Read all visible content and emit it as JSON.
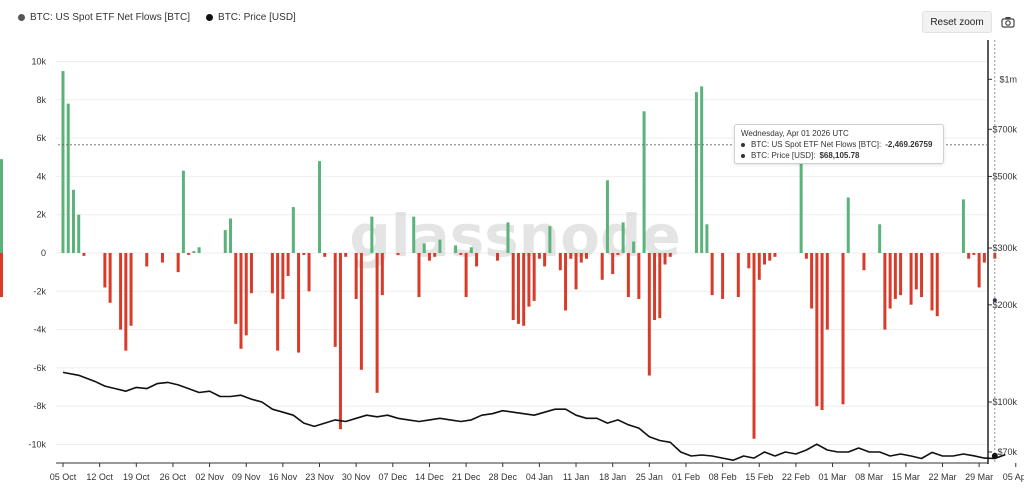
{
  "legend": {
    "items": [
      {
        "label": "BTC: US Spot ETF Net Flows [BTC]",
        "color": "#555555"
      },
      {
        "label": "BTC: Price [USD]",
        "color": "#111111"
      }
    ]
  },
  "toolbar": {
    "reset_zoom_label": "Reset zoom",
    "camera_icon": "camera-icon"
  },
  "watermark": "glassnode",
  "tooltip": {
    "date": "Wednesday, Apr 01 2026 UTC",
    "flow_label": "BTC: US Spot ETF Net Flows [BTC]: ",
    "flow_value": "-2,469.26759",
    "price_label": "BTC: Price [USD]: ",
    "price_value": "$68,105.78"
  },
  "colors": {
    "positive": "#5bb27a",
    "negative": "#d93b2b",
    "price": "#111111",
    "grid": "#eeeeee"
  },
  "chart_data": {
    "type": "bar",
    "xlabel": "",
    "ylabel": "",
    "x_ticks": [
      "05 Oct",
      "12 Oct",
      "19 Oct",
      "26 Oct",
      "02 Nov",
      "09 Nov",
      "16 Nov",
      "23 Nov",
      "30 Nov",
      "07 Dec",
      "14 Dec",
      "21 Dec",
      "28 Dec",
      "04 Jan",
      "11 Jan",
      "18 Jan",
      "25 Jan",
      "01 Feb",
      "08 Feb",
      "15 Feb",
      "22 Feb",
      "01 Mar",
      "08 Mar",
      "15 Mar",
      "22 Mar",
      "29 Mar",
      "05 Apr"
    ],
    "y_left": {
      "ticks": [
        10000,
        8000,
        6000,
        4000,
        2000,
        0,
        -2000,
        -4000,
        -6000,
        -8000,
        -10000
      ],
      "tick_labels": [
        "10k",
        "8k",
        "6k",
        "4k",
        "2k",
        "0",
        "-2k",
        "-4k",
        "-6k",
        "-8k",
        "-10k"
      ],
      "range": [
        -10600,
        10600
      ]
    },
    "y_right": {
      "scale": "log",
      "ticks": [
        1000000,
        700000,
        500000,
        300000,
        200000,
        100000,
        70000
      ],
      "tick_labels": [
        "$1m",
        "$700k",
        "$500k",
        "$300k",
        "$200k",
        "$100k",
        "$70k"
      ]
    },
    "series": [
      {
        "name": "BTC: US Spot ETF Net Flows [BTC]",
        "kind": "bar",
        "day_offsets": [
          0,
          1,
          2,
          3,
          4,
          5,
          6,
          7,
          8,
          9,
          10,
          11,
          12,
          13,
          14,
          15,
          16,
          17,
          18,
          19,
          20,
          21,
          22,
          23,
          24,
          25,
          26,
          27,
          28,
          29,
          30,
          31,
          32,
          33,
          34,
          35,
          36,
          37,
          38,
          39,
          40,
          41,
          42,
          43,
          44,
          45,
          46,
          47,
          48,
          49,
          50,
          51,
          52,
          53,
          54,
          55,
          56,
          57,
          58,
          59,
          60,
          61,
          62,
          63,
          64,
          65,
          66,
          67,
          68,
          69,
          70,
          71,
          72,
          73,
          74,
          75,
          76,
          77,
          78,
          79,
          80,
          81,
          82,
          83,
          84,
          85,
          86,
          87,
          88,
          89,
          90,
          91,
          92,
          93,
          94,
          95,
          96,
          97,
          98,
          99,
          100,
          101,
          102,
          103,
          104,
          105,
          106,
          107,
          108,
          109,
          110,
          111,
          112,
          113,
          114,
          115,
          116,
          117,
          118,
          119,
          120,
          121,
          122,
          123,
          124,
          125,
          126,
          127,
          128,
          129,
          130,
          131,
          132,
          133,
          134,
          135,
          136,
          137,
          138,
          139,
          140,
          141,
          142,
          143,
          144,
          145,
          146,
          147,
          148,
          149,
          150,
          151,
          152,
          153,
          154,
          155,
          156,
          157,
          158,
          159,
          160,
          161,
          162,
          163,
          164,
          165,
          166,
          167,
          168,
          169,
          170,
          171,
          172,
          173,
          174,
          175,
          176,
          177,
          178
        ],
        "values": [
          9500,
          7800,
          3300,
          2000,
          -150,
          0,
          0,
          0,
          -1800,
          -2600,
          0,
          -4000,
          -5100,
          -3800,
          0,
          0,
          -700,
          0,
          0,
          -500,
          0,
          0,
          -1000,
          4300,
          -100,
          100,
          300,
          0,
          0,
          0,
          0,
          1200,
          1800,
          -3700,
          -5000,
          -4300,
          -2100,
          0,
          0,
          0,
          -2100,
          -5100,
          -2400,
          -1200,
          2400,
          -5200,
          -100,
          -2000,
          0,
          4800,
          -200,
          0,
          -4900,
          -9200,
          -200,
          0,
          -2400,
          -6100,
          0,
          1900,
          -7300,
          -2200,
          0,
          0,
          -100,
          0,
          0,
          1900,
          -2300,
          500,
          -400,
          -200,
          700,
          0,
          0,
          400,
          -100,
          -2300,
          300,
          -700,
          0,
          0,
          0,
          -400,
          0,
          1600,
          -3500,
          -3700,
          -3800,
          -2800,
          -2500,
          -300,
          -700,
          1400,
          0,
          -900,
          -3000,
          -300,
          -1900,
          -500,
          -300,
          0,
          0,
          -1400,
          3800,
          -1100,
          -100,
          1600,
          -2300,
          600,
          -2400,
          7400,
          -6400,
          -3500,
          -3400,
          -600,
          -200,
          0,
          0,
          0,
          0,
          8400,
          8700,
          1500,
          -2200,
          0,
          -2400,
          0,
          0,
          -2300,
          0,
          -800,
          -9700,
          -1400,
          -600,
          -400,
          -200,
          0,
          0,
          0,
          0,
          5800,
          -300,
          -2900,
          -8000,
          -8200,
          -4000,
          0,
          0,
          -7900,
          2900,
          0,
          0,
          -900,
          0,
          0,
          1500,
          -4000,
          -2900,
          -2400,
          -2200,
          0,
          -2700,
          -1900,
          -2300,
          0,
          -3000,
          -3300,
          0,
          0,
          0,
          0,
          2800,
          -300,
          -100,
          -1800,
          -500,
          0,
          -300,
          -200,
          4900,
          -500,
          -300,
          -700,
          400,
          0,
          0,
          -2300
        ],
        "color_positive": "#5bb27a",
        "color_negative": "#d93b2b"
      },
      {
        "name": "BTC: Price [USD]",
        "kind": "line",
        "day_offsets": [
          0,
          3,
          6,
          8,
          10,
          12,
          14,
          16,
          18,
          20,
          22,
          24,
          26,
          28,
          30,
          32,
          34,
          36,
          38,
          40,
          42,
          44,
          46,
          48,
          50,
          52,
          54,
          56,
          58,
          60,
          62,
          64,
          66,
          68,
          70,
          72,
          74,
          76,
          78,
          80,
          82,
          84,
          86,
          88,
          90,
          92,
          94,
          96,
          98,
          100,
          102,
          104,
          106,
          108,
          110,
          112,
          114,
          116,
          118,
          120,
          122,
          124,
          126,
          128,
          130,
          132,
          134,
          136,
          138,
          140,
          142,
          144,
          146,
          148,
          150,
          152,
          154,
          156,
          158,
          160,
          162,
          164,
          166,
          168,
          170,
          172,
          174,
          176,
          178,
          180
        ],
        "values": [
          123500,
          121000,
          116000,
          112000,
          110000,
          108000,
          111000,
          110000,
          114000,
          115000,
          113000,
          110000,
          107000,
          108000,
          104000,
          104000,
          105000,
          102000,
          100000,
          95000,
          93000,
          91000,
          86000,
          84000,
          86000,
          88000,
          87000,
          89000,
          91000,
          90000,
          91000,
          89000,
          88000,
          87000,
          88000,
          89000,
          88000,
          87000,
          88000,
          91000,
          92000,
          94000,
          93000,
          92000,
          91000,
          93000,
          95000,
          95000,
          91000,
          89000,
          89000,
          86000,
          88000,
          85000,
          83000,
          78000,
          76000,
          75000,
          70000,
          68000,
          68500,
          68000,
          67000,
          66000,
          68000,
          67000,
          70000,
          68000,
          70000,
          69000,
          71000,
          74000,
          71000,
          70000,
          70000,
          72000,
          70000,
          70000,
          68000,
          69000,
          68000,
          66800,
          69800,
          68000,
          68000,
          69000,
          68105.78,
          67000,
          66800,
          68700
        ],
        "color": "#111111"
      }
    ],
    "highlight": {
      "date": "Wednesday, Apr 01 2026 UTC",
      "flow": -2469.26759,
      "price": 68105.78
    },
    "reference_line": {
      "left_axis_value": 5650
    },
    "grid": true,
    "legend_position": "top-left"
  }
}
